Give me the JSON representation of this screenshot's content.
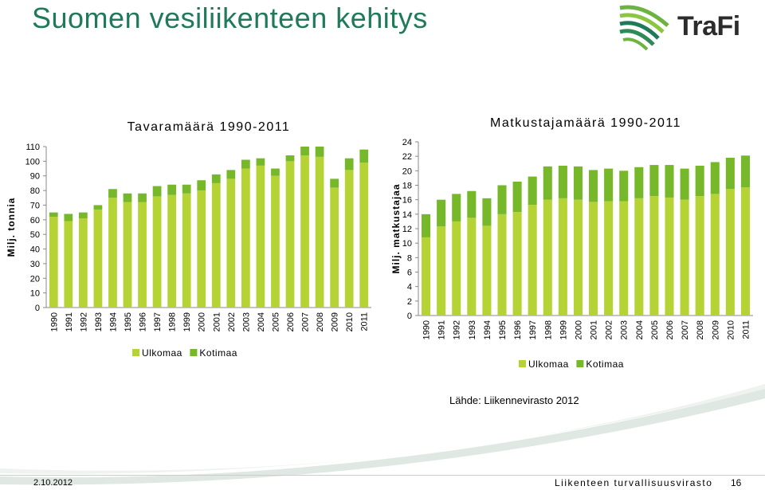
{
  "page": {
    "title": "Suomen vesiliikenteen kehitys",
    "logo_text": "TraFi",
    "source": "Lähde: Liikennevirasto 2012",
    "footer_date": "2.10.2012",
    "footer_org": "Liikenteen turvallisuusvirasto",
    "footer_page": "16"
  },
  "colors": {
    "ulkomaa": "#b5d334",
    "kotimaa": "#76b82a",
    "title": "#1f7a5a"
  },
  "chart_data": [
    {
      "type": "bar",
      "stacked": true,
      "title": "Tavaramäärä 1990-2011",
      "ylabel": "Milj. tonnia",
      "ylim": [
        0,
        110
      ],
      "yticks": [
        0,
        10,
        20,
        30,
        40,
        50,
        60,
        70,
        80,
        90,
        100,
        110
      ],
      "grid": false,
      "legend": "bottom",
      "categories": [
        "1990",
        "1991",
        "1992",
        "1993",
        "1994",
        "1995",
        "1996",
        "1997",
        "1998",
        "1999",
        "2000",
        "2001",
        "2002",
        "2003",
        "2004",
        "2005",
        "2006",
        "2007",
        "2008",
        "2009",
        "2010",
        "2011"
      ],
      "series": [
        {
          "name": "Ulkomaa",
          "values": [
            62,
            59,
            61,
            67,
            75,
            72,
            72,
            76,
            77,
            78,
            80,
            85,
            88,
            95,
            97,
            90,
            100,
            104,
            103,
            82,
            94,
            99
          ]
        },
        {
          "name": "Kotimaa",
          "values": [
            3,
            5,
            4,
            3,
            6,
            6,
            6,
            7,
            7,
            6,
            7,
            6,
            6,
            6,
            5,
            5,
            4,
            6,
            7,
            6,
            8,
            9
          ]
        }
      ]
    },
    {
      "type": "bar",
      "stacked": true,
      "title": "Matkustajamäärä 1990-2011",
      "ylabel": "Milj. matkustajaa",
      "ylim": [
        0,
        24
      ],
      "yticks": [
        0,
        2,
        4,
        6,
        8,
        10,
        12,
        14,
        16,
        18,
        20,
        22,
        24
      ],
      "grid": false,
      "legend": "bottom",
      "categories": [
        "1990",
        "1991",
        "1992",
        "1993",
        "1994",
        "1995",
        "1996",
        "1997",
        "1998",
        "1999",
        "2000",
        "2001",
        "2002",
        "2003",
        "2004",
        "2005",
        "2006",
        "2007",
        "2008",
        "2009",
        "2010",
        "2011"
      ],
      "series": [
        {
          "name": "Ulkomaa",
          "values": [
            10.8,
            12.3,
            13.0,
            13.5,
            12.4,
            14.0,
            14.3,
            15.3,
            16.0,
            16.2,
            16.0,
            15.7,
            15.8,
            15.8,
            16.2,
            16.5,
            16.3,
            16.0,
            16.5,
            16.8,
            17.5,
            17.7
          ]
        },
        {
          "name": "Kotimaa",
          "values": [
            3.2,
            3.7,
            3.8,
            3.7,
            3.8,
            4.0,
            4.2,
            3.9,
            4.6,
            4.5,
            4.6,
            4.4,
            4.5,
            4.2,
            4.3,
            4.3,
            4.5,
            4.3,
            4.2,
            4.4,
            4.3,
            4.4
          ]
        }
      ]
    }
  ]
}
